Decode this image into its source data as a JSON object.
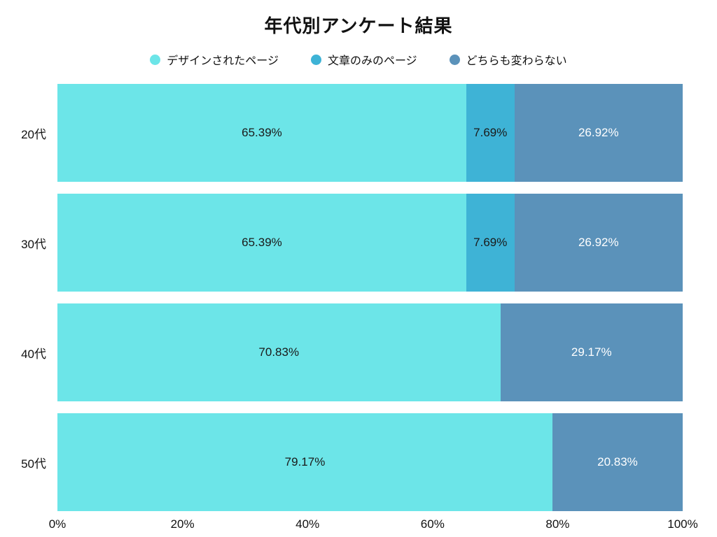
{
  "chart_data": {
    "type": "bar",
    "orientation": "horizontal",
    "stacked": true,
    "title": "年代別アンケート結果",
    "categories": [
      "20代",
      "30代",
      "40代",
      "50代"
    ],
    "series": [
      {
        "name": "デザインされたページ",
        "color": "#6ce5e8",
        "label_color": "#1a1a1a",
        "values": [
          65.39,
          65.39,
          70.83,
          79.17
        ]
      },
      {
        "name": "文章のみのページ",
        "color": "#3eb3d6",
        "label_color": "#1a1a1a",
        "values": [
          7.69,
          7.69,
          0,
          0
        ]
      },
      {
        "name": "どちらも変わらない",
        "color": "#5b92ba",
        "label_color": "#ffffff",
        "values": [
          26.92,
          26.92,
          29.17,
          20.83
        ]
      }
    ],
    "x_ticks": [
      "0%",
      "20%",
      "40%",
      "60%",
      "80%",
      "100%"
    ],
    "xlim": [
      0,
      100
    ],
    "value_suffix": "%",
    "legend_position": "top",
    "grid": false
  }
}
